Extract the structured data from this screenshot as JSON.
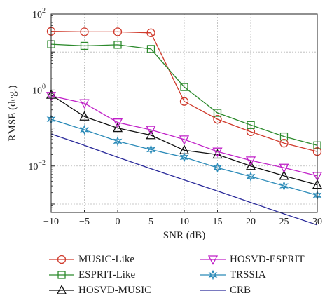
{
  "chart_data": {
    "type": "line",
    "title": "",
    "xlabel": "SNR (dB)",
    "ylabel": "RMSE (deg.)",
    "yscale": "log",
    "xlim": [
      -10,
      30
    ],
    "ylim": [
      0.0006,
      100
    ],
    "xticks": [
      -10,
      -5,
      0,
      5,
      10,
      15,
      20,
      25,
      30
    ],
    "xtick_labels": [
      "−10",
      "−5",
      "0",
      "5",
      "10",
      "15",
      "20",
      "25",
      "30"
    ],
    "yticks": [
      0.01,
      1,
      100
    ],
    "ytick_labels": [
      {
        "base": "10",
        "exp": "−2"
      },
      {
        "base": "10",
        "exp": "0"
      },
      {
        "base": "10",
        "exp": "2"
      }
    ],
    "grid": true,
    "legend_position": "below",
    "x": [
      -10,
      -5,
      0,
      5,
      10,
      15,
      20,
      25,
      30
    ],
    "series": [
      {
        "name": "MUSIC-Like",
        "color": "#d03a2c",
        "marker": "circle",
        "values": [
          35,
          34,
          34,
          32,
          0.5,
          0.17,
          0.08,
          0.04,
          0.024
        ]
      },
      {
        "name": "ESPRIT-Like",
        "color": "#2c8a2c",
        "marker": "square",
        "values": [
          16,
          14.5,
          15.5,
          12,
          1.2,
          0.25,
          0.12,
          0.06,
          0.035
        ]
      },
      {
        "name": "HOSVD-MUSIC",
        "color": "#111111",
        "marker": "triangle-up",
        "values": [
          0.75,
          0.2,
          0.1,
          0.065,
          0.026,
          0.02,
          0.01,
          0.0055,
          0.0032
        ]
      },
      {
        "name": "HOSVD-ESPRIT",
        "color": "#c020c8",
        "marker": "triangle-down",
        "values": [
          0.7,
          0.45,
          0.14,
          0.09,
          0.05,
          0.024,
          0.014,
          0.009,
          0.0055
        ]
      },
      {
        "name": "TRSSIA",
        "color": "#2a8ab8",
        "marker": "star",
        "values": [
          0.17,
          0.09,
          0.045,
          0.027,
          0.017,
          0.009,
          0.0053,
          0.003,
          0.0017
        ]
      },
      {
        "name": "CRB",
        "color": "#2a2a9a",
        "marker": "none",
        "values": [
          0.07,
          0.035,
          0.017,
          0.0085,
          0.0043,
          0.0022,
          0.0011,
          0.00055,
          0.00028
        ]
      }
    ]
  }
}
